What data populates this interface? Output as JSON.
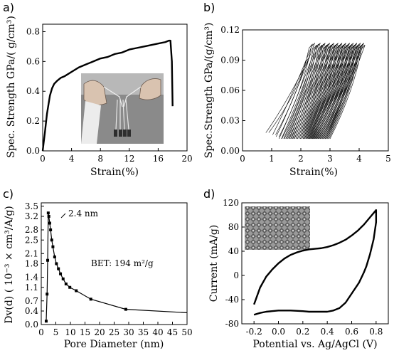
{
  "chart_data": [
    {
      "panel": "a)",
      "type": "line",
      "xlabel": "Strain(%)",
      "ylabel": "Spec. Strength GPa/( g/cm³)",
      "xlim": [
        0,
        20
      ],
      "ylim": [
        0,
        0.85
      ],
      "xticks": [
        "0",
        "4",
        "8",
        "12",
        "16",
        "20"
      ],
      "yticks": [
        "0.0",
        "0.2",
        "0.4",
        "0.6",
        "0.8"
      ],
      "inset": "photo of fiber bundle stretched between fingers",
      "series": [
        {
          "x": [
            0.0,
            0.3,
            0.6,
            1.0,
            1.3,
            1.6,
            2.0,
            2.5,
            3.0,
            4.0,
            5.0,
            6.0,
            7.0,
            8.0,
            9.0,
            10.0,
            11.0,
            12.0,
            13.0,
            14.0,
            15.0,
            16.0,
            17.0,
            17.5,
            17.7,
            17.9,
            18.0
          ],
          "y": [
            0.0,
            0.12,
            0.25,
            0.37,
            0.42,
            0.45,
            0.47,
            0.49,
            0.5,
            0.53,
            0.56,
            0.58,
            0.6,
            0.62,
            0.63,
            0.65,
            0.66,
            0.68,
            0.69,
            0.7,
            0.71,
            0.72,
            0.73,
            0.74,
            0.74,
            0.6,
            0.3
          ]
        }
      ]
    },
    {
      "panel": "b)",
      "type": "line",
      "xlabel": "Strain(%)",
      "ylabel": "Spec.Strength GPa/(g/cm³)",
      "xlim": [
        0,
        5
      ],
      "ylim": [
        0,
        0.12
      ],
      "xticks": [
        "0",
        "1",
        "2",
        "3",
        "4",
        "5"
      ],
      "yticks": [
        "0.00",
        "0.03",
        "0.06",
        "0.09",
        "0.12"
      ],
      "description": "cyclic loading-unloading hysteresis loops",
      "cycles": {
        "count": 40,
        "start_strain_first": 0.8,
        "start_strain_last": 2.9,
        "peak_strain_first": 2.3,
        "peak_strain_last": 4.2,
        "min_stress": 0.012,
        "peak_stress": 0.105
      }
    },
    {
      "panel": "c)",
      "type": "line",
      "xlabel": "Pore Diameter (nm)",
      "ylabel": "Dv(d) ( 10⁻³ × cm³/A/g)",
      "xlim": [
        0,
        50
      ],
      "ylim": [
        0,
        3.6
      ],
      "xticks": [
        "0",
        "5",
        "10",
        "15",
        "20",
        "25",
        "30",
        "35",
        "40",
        "45",
        "50"
      ],
      "yticks": [
        "0.0",
        "0.4",
        "0.7",
        "1.1",
        "1.4",
        "1.8",
        "2.1",
        "2.5",
        "2.8",
        "3.2",
        "3.5"
      ],
      "annotations": [
        "2.4 nm",
        "BET: 194 m²/g"
      ],
      "series": [
        {
          "x": [
            1.7,
            2.0,
            2.2,
            2.4,
            2.6,
            2.9,
            3.2,
            3.6,
            4.0,
            4.6,
            5.2,
            5.9,
            6.6,
            7.5,
            8.5,
            9.8,
            12.0,
            17.0,
            29.0,
            50.0
          ],
          "y": [
            0.1,
            0.9,
            1.9,
            3.3,
            3.2,
            3.0,
            2.8,
            2.5,
            2.3,
            2.0,
            1.8,
            1.65,
            1.5,
            1.35,
            1.2,
            1.1,
            1.0,
            0.75,
            0.45,
            0.35
          ]
        }
      ]
    },
    {
      "panel": "d)",
      "type": "line",
      "xlabel": "Potential vs. Ag/AgCl (V)",
      "ylabel": "Current (mA/g)",
      "xlim": [
        -0.3,
        0.9
      ],
      "ylim": [
        -80,
        120
      ],
      "xticks": [
        "-0.2",
        "0.0",
        "0.2",
        "0.4",
        "0.6",
        "0.8"
      ],
      "yticks": [
        "-80",
        "-40",
        "0",
        "40",
        "80",
        "120"
      ],
      "inset": "microscope image of fiber mesh",
      "series": [
        {
          "x": [
            -0.2,
            -0.15,
            -0.1,
            -0.05,
            0.0,
            0.05,
            0.1,
            0.15,
            0.2,
            0.25,
            0.3,
            0.35,
            0.4,
            0.45,
            0.5,
            0.55,
            0.6,
            0.65,
            0.7,
            0.75,
            0.8,
            0.8,
            0.78,
            0.75,
            0.72,
            0.7,
            0.66,
            0.6,
            0.55,
            0.5,
            0.45,
            0.4,
            0.35,
            0.3,
            0.25,
            0.2,
            0.1,
            0.0,
            -0.1,
            -0.15,
            -0.2
          ],
          "y": [
            -48,
            -20,
            -2,
            10,
            20,
            28,
            34,
            38,
            41,
            43,
            44,
            45,
            47,
            50,
            54,
            59,
            66,
            74,
            84,
            96,
            108,
            88,
            60,
            35,
            15,
            5,
            -12,
            -30,
            -45,
            -54,
            -58,
            -60,
            -60,
            -60,
            -60,
            -59,
            -58,
            -58,
            -60,
            -62,
            -65
          ]
        }
      ]
    }
  ]
}
